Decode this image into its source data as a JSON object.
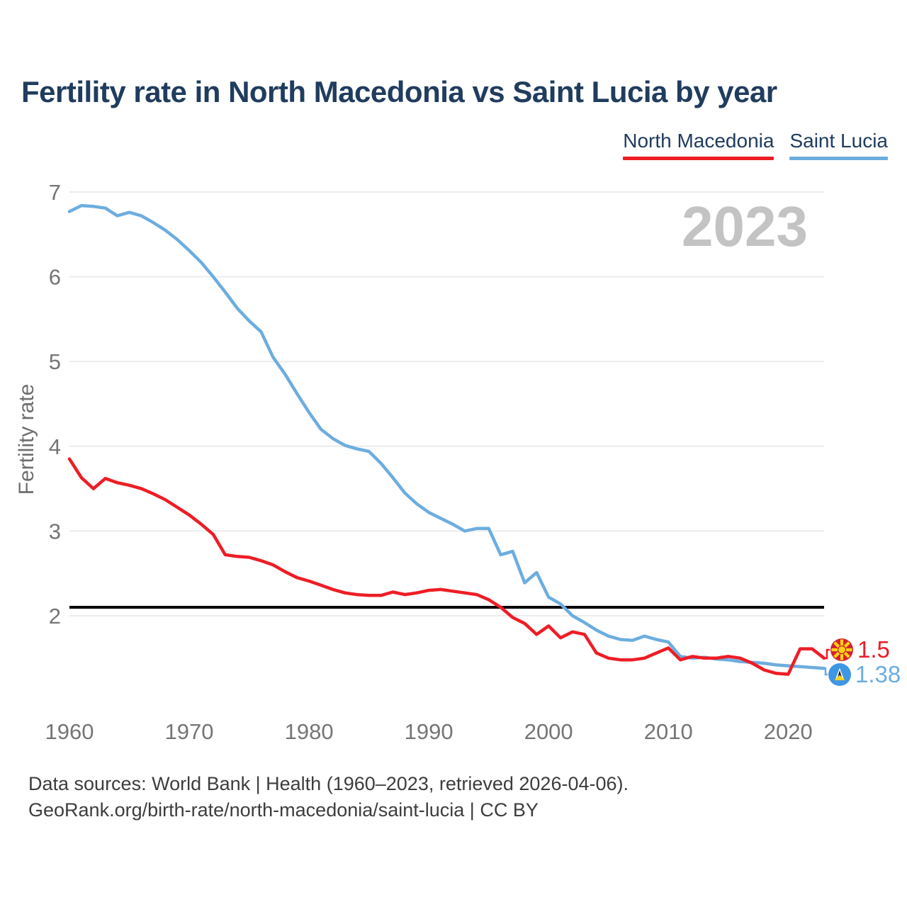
{
  "title": "Fertility rate in North Macedonia vs Saint Lucia by year",
  "watermark": "2023",
  "legend": {
    "items": [
      {
        "label": "North Macedonia",
        "color": "#ee1d25"
      },
      {
        "label": "Saint Lucia",
        "color": "#6caddf"
      }
    ]
  },
  "chart_data": {
    "type": "line",
    "title": "Fertility rate in North Macedonia vs Saint Lucia by year",
    "xlabel": "",
    "ylabel": "Fertility rate",
    "current_year_watermark": "2023",
    "yticks": [
      7,
      6,
      5,
      4,
      3,
      2
    ],
    "xticks": [
      1960,
      1970,
      1980,
      1990,
      2000,
      2010,
      2020
    ],
    "ylim": [
      1.25,
      7.05
    ],
    "grid": "horizontal",
    "legend_position": "top-right",
    "reference_line": {
      "value": 2.1,
      "color": "#000000"
    },
    "years": [
      1960,
      1961,
      1962,
      1963,
      1964,
      1965,
      1966,
      1967,
      1968,
      1969,
      1970,
      1971,
      1972,
      1973,
      1974,
      1975,
      1976,
      1977,
      1978,
      1979,
      1980,
      1981,
      1982,
      1983,
      1984,
      1985,
      1986,
      1987,
      1988,
      1989,
      1990,
      1991,
      1992,
      1993,
      1994,
      1995,
      1996,
      1997,
      1998,
      1999,
      2000,
      2001,
      2002,
      2003,
      2004,
      2005,
      2006,
      2007,
      2008,
      2009,
      2010,
      2011,
      2012,
      2013,
      2014,
      2015,
      2016,
      2017,
      2018,
      2019,
      2020,
      2021,
      2022,
      2023
    ],
    "series": [
      {
        "name": "North Macedonia",
        "color": "#ee1d25",
        "end_label": "1.5",
        "flag": "north-macedonia",
        "values": [
          3.85,
          3.63,
          3.5,
          3.62,
          3.57,
          3.54,
          3.5,
          3.44,
          3.37,
          3.28,
          3.19,
          3.08,
          2.96,
          2.72,
          2.7,
          2.69,
          2.65,
          2.6,
          2.52,
          2.45,
          2.41,
          2.36,
          2.31,
          2.27,
          2.25,
          2.24,
          2.24,
          2.28,
          2.25,
          2.27,
          2.3,
          2.31,
          2.29,
          2.27,
          2.25,
          2.19,
          2.1,
          1.98,
          1.91,
          1.78,
          1.88,
          1.74,
          1.81,
          1.78,
          1.56,
          1.5,
          1.48,
          1.48,
          1.5,
          1.56,
          1.62,
          1.48,
          1.52,
          1.5,
          1.5,
          1.52,
          1.5,
          1.44,
          1.36,
          1.32,
          1.31,
          1.61,
          1.61,
          1.5
        ]
      },
      {
        "name": "Saint Lucia",
        "color": "#6caddf",
        "end_label": "1.38",
        "flag": "saint-lucia",
        "values": [
          6.77,
          6.84,
          6.83,
          6.81,
          6.72,
          6.76,
          6.72,
          6.64,
          6.55,
          6.44,
          6.31,
          6.17,
          6.0,
          5.82,
          5.63,
          5.48,
          5.35,
          5.05,
          4.85,
          4.62,
          4.4,
          4.2,
          4.09,
          4.01,
          3.97,
          3.94,
          3.8,
          3.63,
          3.45,
          3.32,
          3.22,
          3.15,
          3.08,
          3.0,
          3.03,
          3.03,
          2.72,
          2.76,
          2.39,
          2.51,
          2.22,
          2.14,
          2.0,
          1.92,
          1.83,
          1.76,
          1.72,
          1.71,
          1.76,
          1.72,
          1.69,
          1.52,
          1.5,
          1.51,
          1.49,
          1.48,
          1.46,
          1.45,
          1.44,
          1.42,
          1.41,
          1.4,
          1.39,
          1.38
        ]
      }
    ]
  },
  "footer": {
    "line1": "Data sources: World Bank | Health (1960–2023, retrieved 2026-04-06).",
    "line2": "GeoRank.org/birth-rate/north-macedonia/saint-lucia | CC BY"
  }
}
